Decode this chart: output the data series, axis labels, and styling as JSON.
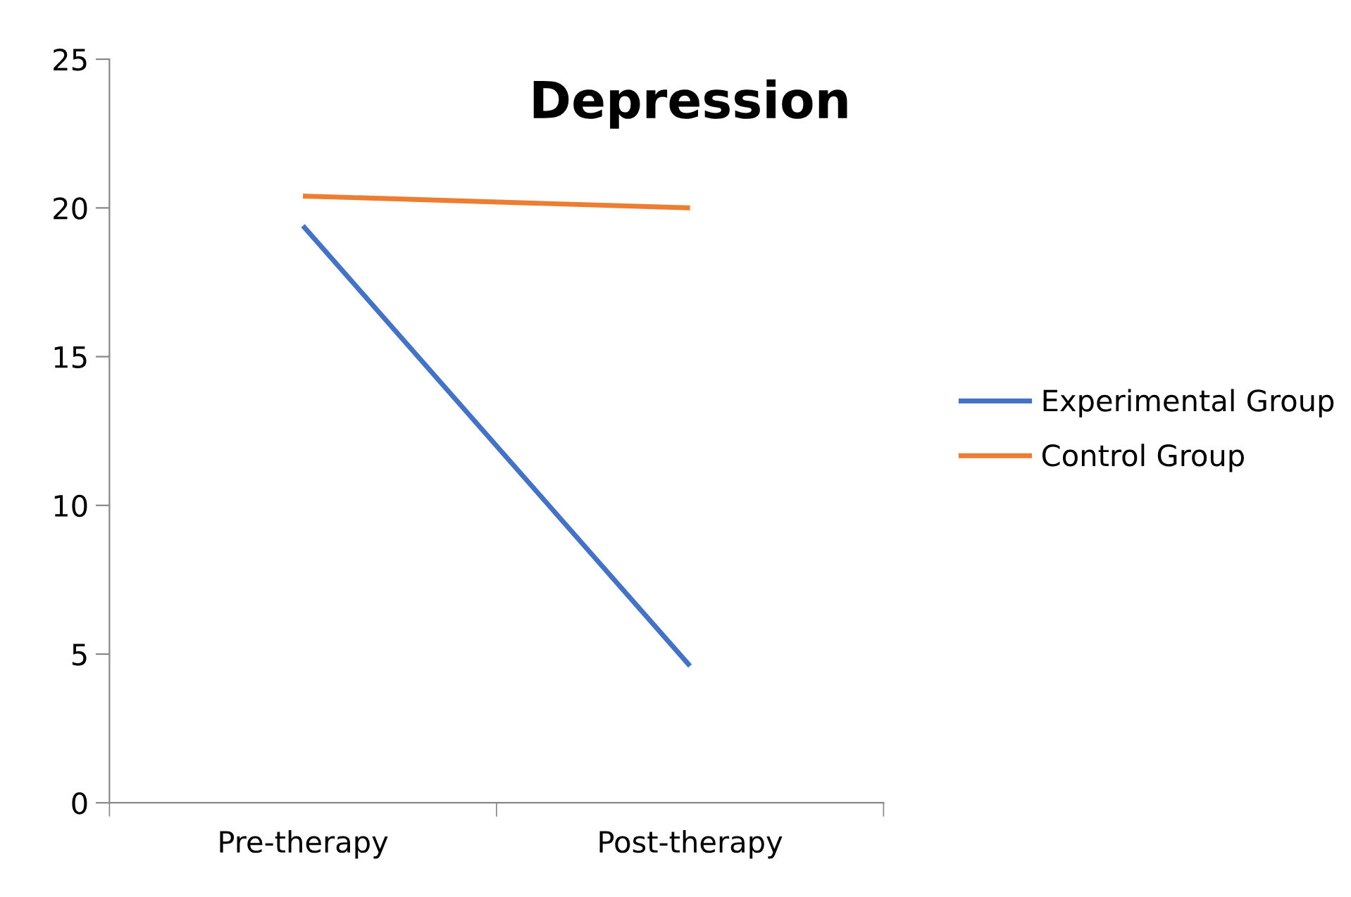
{
  "chart_data": {
    "type": "line",
    "title": "Depression",
    "categories": [
      "Pre-therapy",
      "Post-therapy"
    ],
    "series": [
      {
        "name": "Experimental Group",
        "color": "#4472c4",
        "values": [
          19.4,
          4.6
        ]
      },
      {
        "name": "Control Group",
        "color": "#ed7d31",
        "values": [
          20.4,
          20.0
        ]
      }
    ],
    "ylim": [
      0,
      25
    ],
    "yticks": [
      0,
      5,
      10,
      15,
      20,
      25
    ],
    "grid": false,
    "legend": "right",
    "marker": "none",
    "line_style": "solid"
  }
}
